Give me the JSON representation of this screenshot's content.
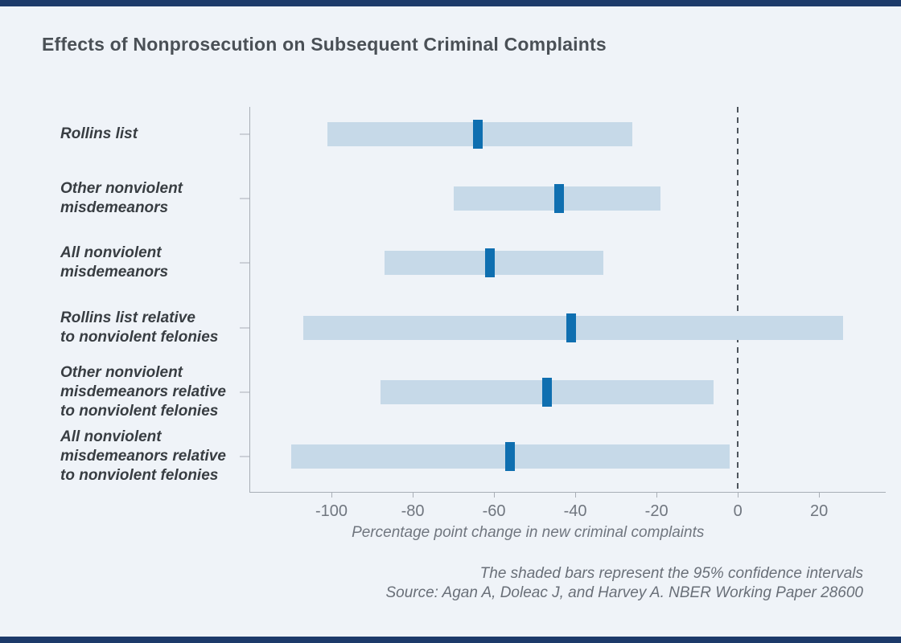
{
  "page": {
    "background_color": "#eff3f8",
    "accent_bar_color": "#1c3a6a"
  },
  "header": {
    "title": "Effects of Nonprosecution on Subsequent Criminal Complaints"
  },
  "chart_data": {
    "type": "bar",
    "subtype": "horizontal-confidence-interval",
    "title": "Effects of Nonprosecution on Subsequent Criminal Complaints",
    "xlabel": "Percentage point change in new criminal complaints",
    "ylabel": "",
    "xlim": [
      -120,
      36.4
    ],
    "x_ticks": [
      -100,
      -80,
      -60,
      -40,
      -20,
      0,
      20
    ],
    "zero_line": 0,
    "grid": "off",
    "legend": "none",
    "categories": [
      "Rollins list",
      "Other nonviolent misdemeanors",
      "All nonviolent misdemeanors",
      "Rollins list relative to nonviolent felonies",
      "Other nonviolent misdemeanors relative to nonviolent felonies",
      "All nonviolent misdemeanors relative to nonviolent felonies"
    ],
    "category_lines": [
      "Rollins list",
      "Other nonviolent\nmisdemeanors",
      "All nonviolent\nmisdemeanors",
      "Rollins list relative\nto nonviolent felonies",
      "Other nonviolent\nmisdemeanors relative\nto nonviolent felonies",
      "All nonviolent\nmisdemeanors relative\nto nonviolent felonies"
    ],
    "series": [
      {
        "name": "95% confidence interval",
        "role": "interval",
        "low": [
          -101,
          -70,
          -87,
          -107,
          -88,
          -110
        ],
        "high": [
          -26,
          -19,
          -33,
          26,
          -6,
          -2
        ],
        "color": "#c6d9e8"
      },
      {
        "name": "Point estimate",
        "role": "marker",
        "values": [
          -64,
          -44,
          -61,
          -41,
          -47,
          -56
        ],
        "color": "#0f6fb0"
      }
    ]
  },
  "footer": {
    "note": "The shaded bars represent the 95% confidence intervals",
    "source": "Source: Agan A, Doleac J, and Harvey A. NBER Working Paper 28600"
  }
}
